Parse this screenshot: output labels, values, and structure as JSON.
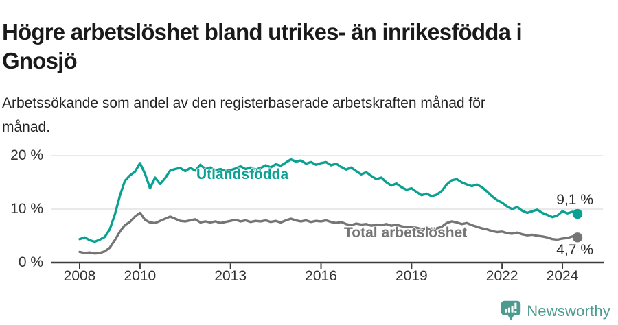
{
  "page": {
    "title_lines": [
      "Högre arbetslöshet bland utrikes- än inrikesfödda i",
      "Gnosjö"
    ],
    "subtitle_lines": [
      "Arbetssökande som andel av den registerbaserade arbetskraften månad för",
      "månad."
    ],
    "brand": {
      "name": "Newsworthy",
      "icon": "newsworthy-chart-bubble-icon",
      "color": "#4d9b8f"
    }
  },
  "chart_data": {
    "type": "line",
    "unit": "%",
    "x_start": 2008.0,
    "x_step_years": 0.1666667,
    "x_ticks": [
      2008,
      2010,
      2013,
      2016,
      2019,
      2022,
      2024
    ],
    "x_tick_labels": [
      "2008",
      "2010",
      "2013",
      "2016",
      "2019",
      "2022",
      "2024"
    ],
    "y_ticks": [
      0,
      10,
      20
    ],
    "y_tick_labels": [
      "0 %",
      "10 %",
      "20 %"
    ],
    "ylim": [
      0,
      21.5
    ],
    "grid": "horizontal",
    "axis_color": "#3b3b3b",
    "gridline_color": "#dcdcdc",
    "series": [
      {
        "name": "Utlandsfödda",
        "color": "#0aa192",
        "end_value": 9.1,
        "end_label": "9,1 %",
        "values": [
          4.4,
          4.7,
          4.2,
          3.9,
          4.3,
          4.8,
          6.2,
          9.0,
          12.5,
          15.3,
          16.3,
          17.0,
          18.6,
          16.6,
          13.9,
          15.9,
          14.7,
          15.8,
          17.2,
          17.5,
          17.7,
          17.1,
          17.7,
          17.2,
          18.3,
          17.5,
          17.8,
          17.3,
          17.5,
          17.1,
          17.3,
          17.6,
          18.0,
          17.5,
          17.8,
          17.4,
          17.7,
          18.2,
          17.8,
          18.4,
          18.1,
          18.7,
          19.3,
          18.9,
          19.1,
          18.5,
          18.8,
          18.3,
          18.6,
          18.8,
          18.2,
          18.5,
          17.9,
          17.4,
          17.8,
          17.1,
          16.5,
          16.9,
          16.2,
          15.6,
          15.9,
          15.0,
          14.4,
          14.8,
          14.1,
          13.6,
          13.9,
          13.2,
          12.6,
          12.9,
          12.4,
          12.7,
          13.4,
          14.6,
          15.4,
          15.6,
          15.0,
          14.6,
          14.3,
          14.6,
          14.1,
          13.3,
          12.4,
          11.7,
          11.2,
          10.5,
          10.0,
          10.4,
          9.7,
          9.3,
          9.6,
          9.9,
          9.3,
          8.9,
          8.5,
          8.8,
          9.6,
          9.2,
          9.5,
          9.1
        ]
      },
      {
        "name": "Total arbetslöshet",
        "color": "#757575",
        "end_value": 4.7,
        "end_label": "4,7 %",
        "values": [
          2.0,
          1.8,
          1.9,
          1.7,
          1.8,
          2.1,
          2.8,
          4.2,
          5.8,
          7.0,
          7.6,
          8.6,
          9.3,
          8.0,
          7.5,
          7.4,
          7.8,
          8.2,
          8.6,
          8.2,
          7.8,
          7.7,
          7.9,
          8.1,
          7.5,
          7.7,
          7.5,
          7.7,
          7.4,
          7.6,
          7.8,
          8.0,
          7.7,
          7.9,
          7.6,
          7.8,
          7.7,
          7.9,
          7.6,
          7.8,
          7.5,
          7.9,
          8.2,
          7.9,
          7.7,
          7.9,
          7.6,
          7.8,
          7.7,
          7.9,
          7.6,
          7.4,
          7.6,
          7.2,
          7.0,
          7.3,
          7.1,
          7.2,
          6.9,
          7.1,
          7.0,
          7.2,
          6.9,
          7.1,
          6.8,
          6.6,
          6.7,
          6.5,
          6.3,
          6.4,
          6.2,
          6.4,
          6.7,
          7.4,
          7.7,
          7.5,
          7.2,
          7.4,
          7.0,
          6.7,
          6.4,
          6.2,
          5.9,
          5.7,
          5.8,
          5.5,
          5.4,
          5.6,
          5.3,
          5.1,
          5.2,
          5.0,
          4.9,
          4.7,
          4.4,
          4.3,
          4.5,
          4.6,
          4.9,
          4.7
        ]
      }
    ]
  }
}
